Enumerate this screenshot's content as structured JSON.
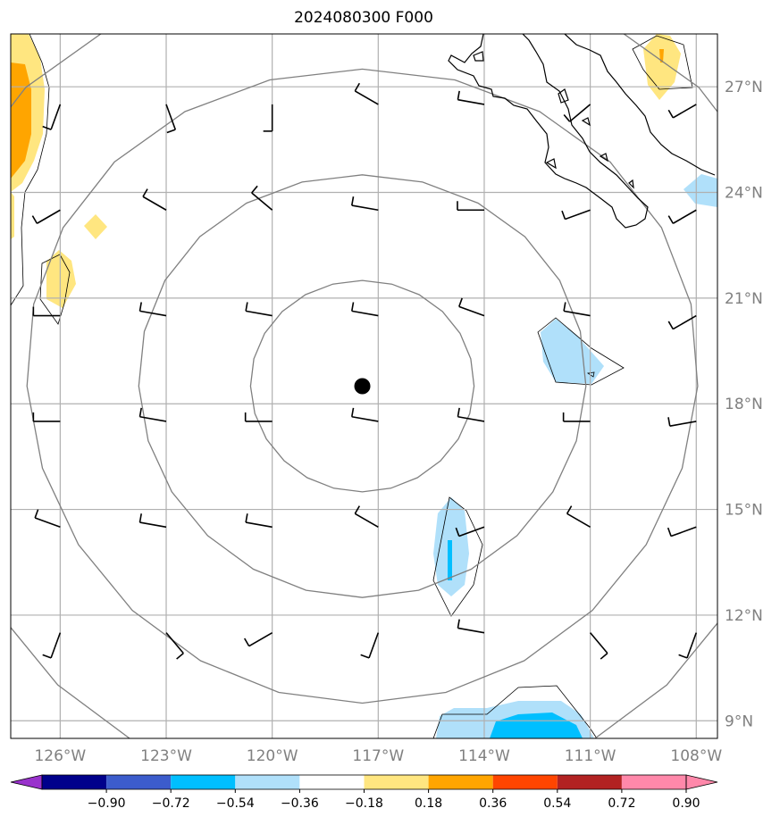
{
  "title": "2024080300 F000",
  "map": {
    "lon_range": [
      -127.4,
      -107.4
    ],
    "lat_range": [
      8.5,
      28.5
    ],
    "lon_ticks": [
      {
        "value": -126,
        "label": "126°W"
      },
      {
        "value": -123,
        "label": "123°W"
      },
      {
        "value": -120,
        "label": "120°W"
      },
      {
        "value": -117,
        "label": "117°W"
      },
      {
        "value": -114,
        "label": "114°W"
      },
      {
        "value": -111,
        "label": "111°W"
      },
      {
        "value": -108,
        "label": "108°W"
      }
    ],
    "lat_ticks": [
      {
        "value": 9,
        "label": "9°N"
      },
      {
        "value": 12,
        "label": "12°N"
      },
      {
        "value": 15,
        "label": "15°N"
      },
      {
        "value": 18,
        "label": "18°N"
      },
      {
        "value": 21,
        "label": "21°N"
      },
      {
        "value": 24,
        "label": "24°N"
      },
      {
        "value": 27,
        "label": "27°N"
      }
    ],
    "center_marker": {
      "lon": -117.45,
      "lat": 18.5
    },
    "range_rings_deg": [
      3,
      6,
      9,
      12
    ],
    "colors": {
      "gridline": "#b0b0b0",
      "ring": "#808080",
      "coast": "#000000",
      "tick_label": "#808080"
    },
    "wind_barb_rows": [
      {
        "lat": 26.5,
        "dirs": [
          200,
          160,
          180,
          300,
          280,
          230,
          240
        ]
      },
      {
        "lat": 23.5,
        "dirs": [
          240,
          300,
          310,
          280,
          270,
          250,
          240
        ]
      },
      {
        "lat": 20.5,
        "dirs": [
          270,
          280,
          280,
          280,
          290,
          280,
          240
        ]
      },
      {
        "lat": 17.5,
        "dirs": [
          270,
          280,
          270,
          280,
          280,
          270,
          260
        ]
      },
      {
        "lat": 14.5,
        "dirs": [
          290,
          280,
          280,
          300,
          250,
          300,
          250
        ]
      },
      {
        "lat": 11.5,
        "dirs": [
          200,
          140,
          240,
          200,
          280,
          140,
          200
        ]
      }
    ],
    "wind_barb_lons": [
      -126,
      -123,
      -120,
      -117,
      -114,
      -111,
      -108
    ]
  },
  "colorbar": {
    "colors": [
      "#9932cc",
      "#00008b",
      "#3c5ccc",
      "#00bfff",
      "#b0e0fa",
      "#ffffff",
      "#ffe680",
      "#ffa500",
      "#ff4500",
      "#b22222",
      "#ff88aa",
      "#ff88aa"
    ],
    "under_color": "#9932cc",
    "over_color": "#ff88aa",
    "tick_labels": [
      "−0.90",
      "−0.72",
      "−0.54",
      "−0.36",
      "−0.18",
      "0.18",
      "0.36",
      "0.54",
      "0.72",
      "0.90"
    ]
  }
}
